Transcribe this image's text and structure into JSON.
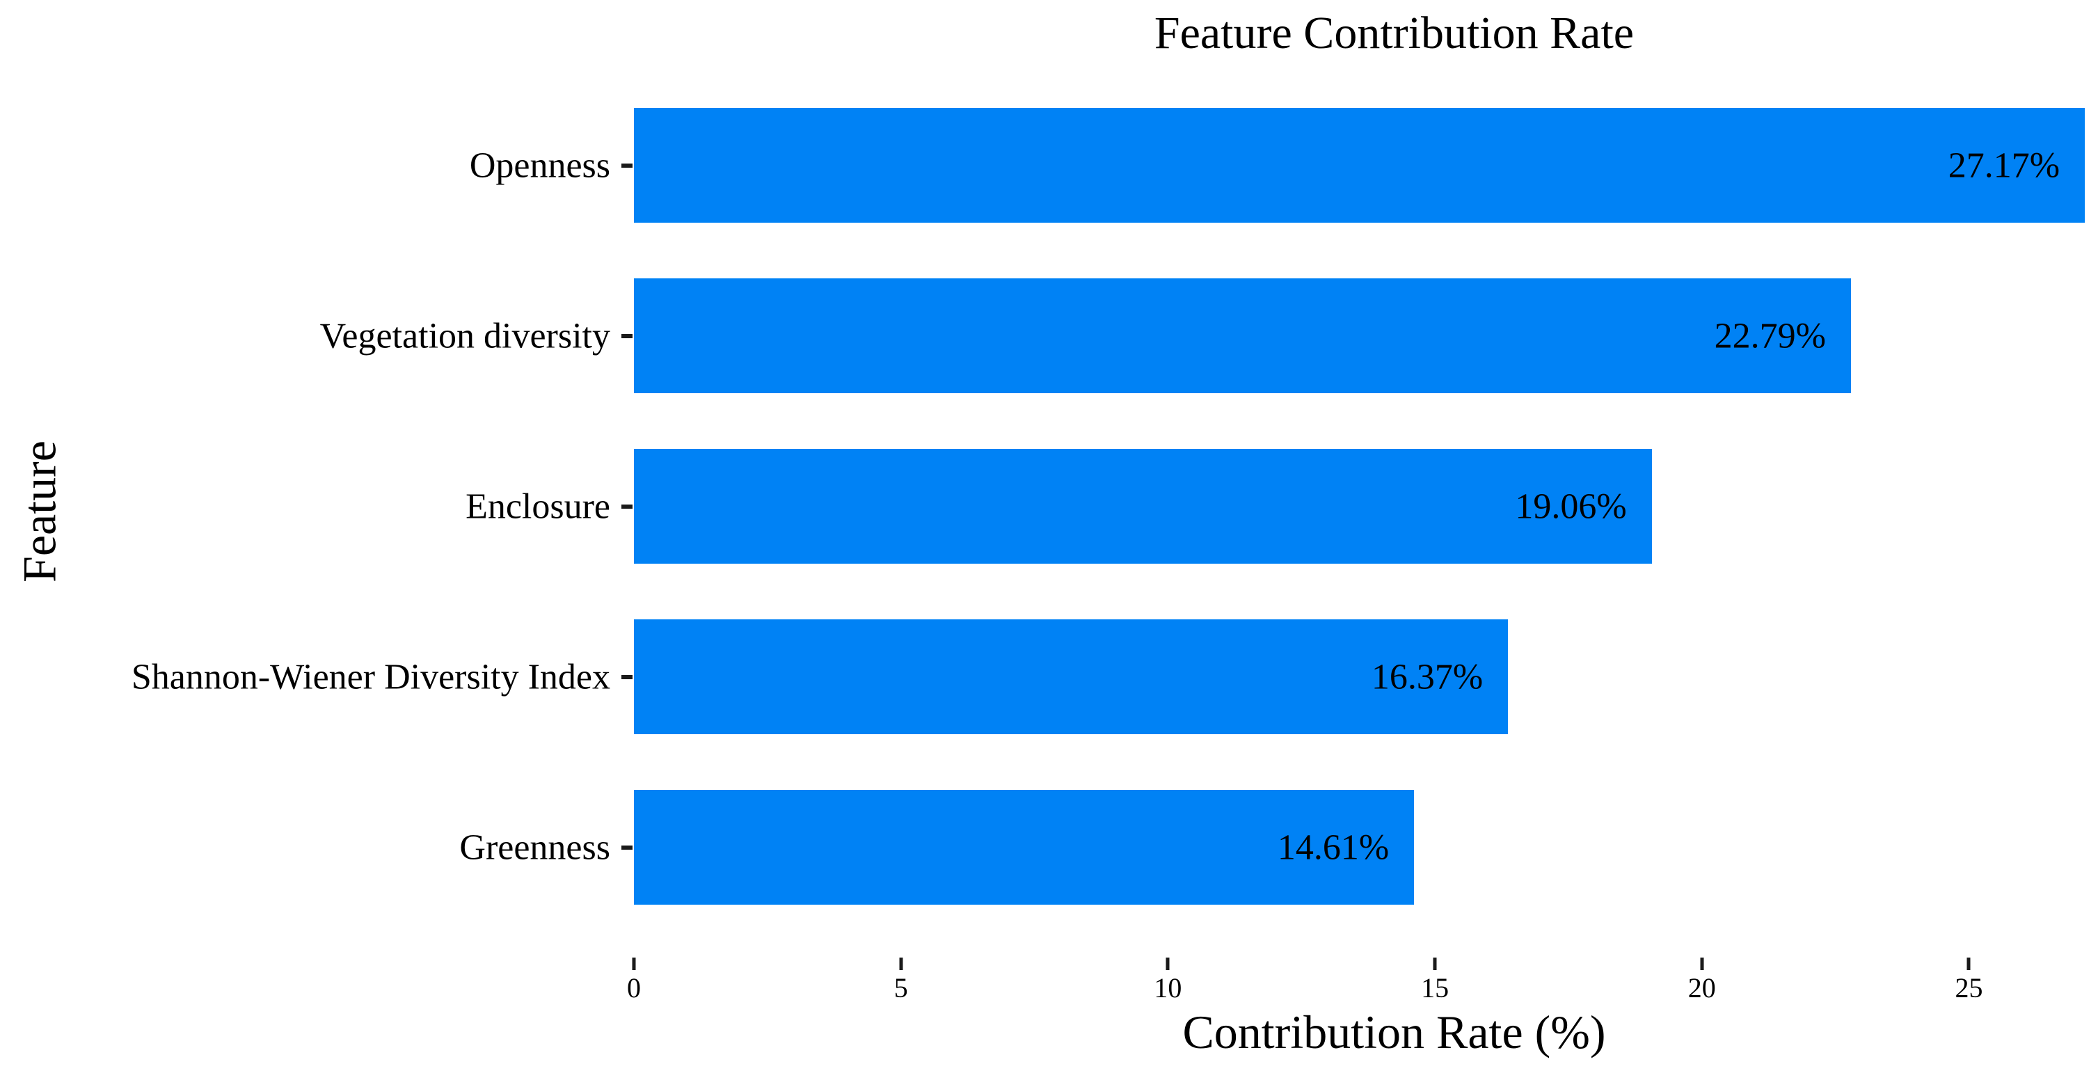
{
  "chart_data": {
    "type": "bar",
    "orientation": "horizontal",
    "title": "Feature Contribution Rate",
    "xlabel": "Contribution Rate (%)",
    "ylabel": "Feature",
    "categories": [
      "Openness",
      "Vegetation diversity",
      "Enclosure",
      "Shannon-Wiener Diversity Index",
      "Greenness"
    ],
    "values": [
      27.17,
      22.79,
      19.06,
      16.37,
      14.61
    ],
    "value_labels": [
      "27.17%",
      "22.79%",
      "19.06%",
      "16.37%",
      "14.61%"
    ],
    "x_ticks": [
      0,
      5,
      10,
      15,
      20,
      25
    ],
    "xlim": [
      0,
      27.3
    ],
    "grid": false,
    "legend": null,
    "bar_color": "#0082F5",
    "text_color": "#000000",
    "tick_color": "#1a1a1a",
    "background_color": "#ffffff"
  }
}
